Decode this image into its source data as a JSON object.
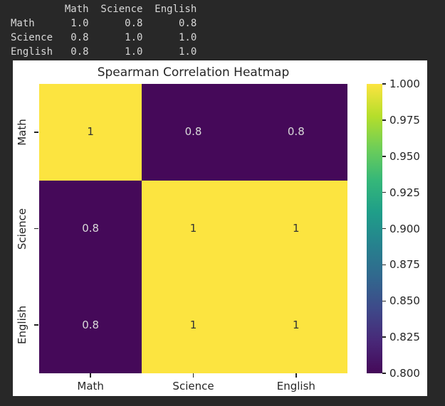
{
  "terminal": {
    "text": "         Math  Science  English\nMath      1.0      0.8      0.8\nScience   0.8      1.0      1.0\nEnglish   0.8      1.0      1.0",
    "columns": [
      "Math",
      "Science",
      "English"
    ],
    "rows": [
      {
        "label": "Math",
        "values": [
          "1.0",
          "0.8",
          "0.8"
        ]
      },
      {
        "label": "Science",
        "values": [
          "0.8",
          "1.0",
          "1.0"
        ]
      },
      {
        "label": "English",
        "values": [
          "0.8",
          "1.0",
          "1.0"
        ]
      }
    ]
  },
  "chart_data": {
    "type": "heatmap",
    "title": "Spearman Correlation Heatmap",
    "x_labels": [
      "Math",
      "Science",
      "English"
    ],
    "y_labels": [
      "Math",
      "Science",
      "English"
    ],
    "values": [
      [
        1.0,
        0.8,
        0.8
      ],
      [
        0.8,
        1.0,
        1.0
      ],
      [
        0.8,
        1.0,
        1.0
      ]
    ],
    "annotations": [
      [
        "1",
        "0.8",
        "0.8"
      ],
      [
        "0.8",
        "1",
        "1"
      ],
      [
        "0.8",
        "1",
        "1"
      ]
    ],
    "vmin": 0.8,
    "vmax": 1.0,
    "colormap": "viridis",
    "legend_position": "right-colorbar",
    "grid": false,
    "colorbar_ticks": [
      "1.000",
      "0.975",
      "0.950",
      "0.925",
      "0.900",
      "0.875",
      "0.850",
      "0.825",
      "0.800"
    ],
    "cell_colors": {
      "1": "#fce440",
      "0.8": "#450959"
    },
    "cell_text_colors": {
      "1": "#333333",
      "0.8": "#d9d9d9"
    }
  },
  "colors": {
    "page_background": "#282828",
    "terminal_text": "#d8d8d8",
    "figure_background": "#ffffff",
    "axis_text": "#262626",
    "viridis_stops": [
      "#fce440",
      "#b5de2b",
      "#6ece58",
      "#35b779",
      "#1f9e89",
      "#26828e",
      "#31688e",
      "#3e4989",
      "#482878",
      "#450959"
    ]
  }
}
